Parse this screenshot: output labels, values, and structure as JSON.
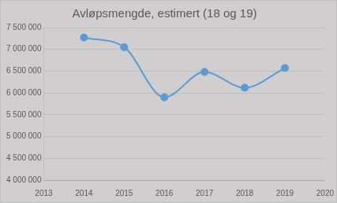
{
  "chart_data": {
    "type": "line",
    "title": "Avløpsmengde, estimert (18 og 19)",
    "x": [
      2014,
      2015,
      2016,
      2017,
      2018,
      2019
    ],
    "values": [
      7270000,
      7050000,
      5900000,
      6480000,
      6120000,
      6570000
    ],
    "color": "#5b9bd5",
    "marker": "circle",
    "xlim": [
      2013,
      2020
    ],
    "xticks": [
      2013,
      2014,
      2015,
      2016,
      2017,
      2018,
      2019,
      2020
    ],
    "ylim": [
      4000000,
      7500000
    ],
    "yticks": [
      {
        "value": 4000000,
        "label": "4 000 000"
      },
      {
        "value": 4500000,
        "label": "4 500 000"
      },
      {
        "value": 5000000,
        "label": "5 000 000"
      },
      {
        "value": 5500000,
        "label": "5 500 000"
      },
      {
        "value": 6000000,
        "label": "6 000 000"
      },
      {
        "value": 6500000,
        "label": "6 500 000"
      },
      {
        "value": 7000000,
        "label": "7 000 000"
      },
      {
        "value": 7500000,
        "label": "7 500 000"
      }
    ],
    "grid": true
  }
}
